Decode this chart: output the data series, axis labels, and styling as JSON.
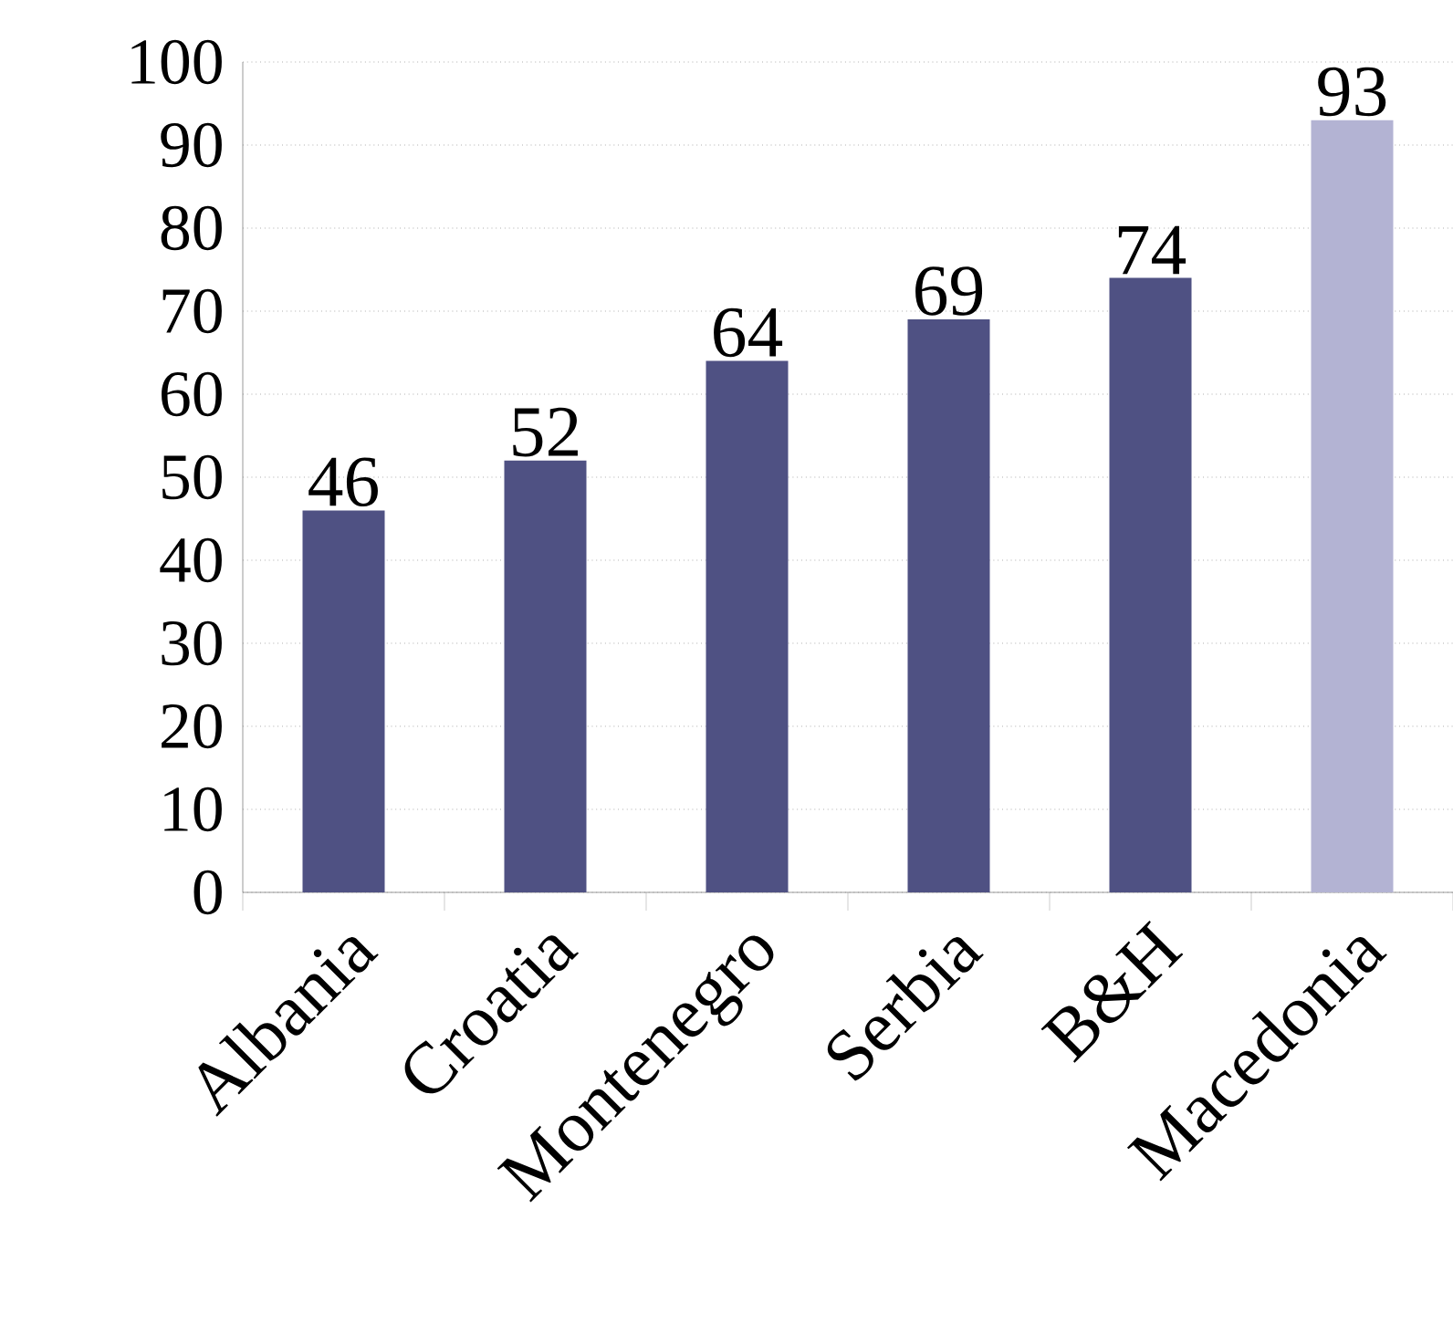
{
  "chart_data": {
    "type": "bar",
    "categories": [
      "Albania",
      "Croatia",
      "Montenegro",
      "Serbia",
      "B&H",
      "Macedonia"
    ],
    "values": [
      46,
      52,
      64,
      69,
      74,
      93
    ],
    "colors": [
      "#4f5183",
      "#4f5183",
      "#4f5183",
      "#4f5183",
      "#4f5183",
      "#b3b3d3"
    ],
    "ylim": [
      0,
      100
    ],
    "yticks": [
      0,
      10,
      20,
      30,
      40,
      50,
      60,
      70,
      80,
      90,
      100
    ],
    "grid": "y",
    "data_labels": true
  }
}
